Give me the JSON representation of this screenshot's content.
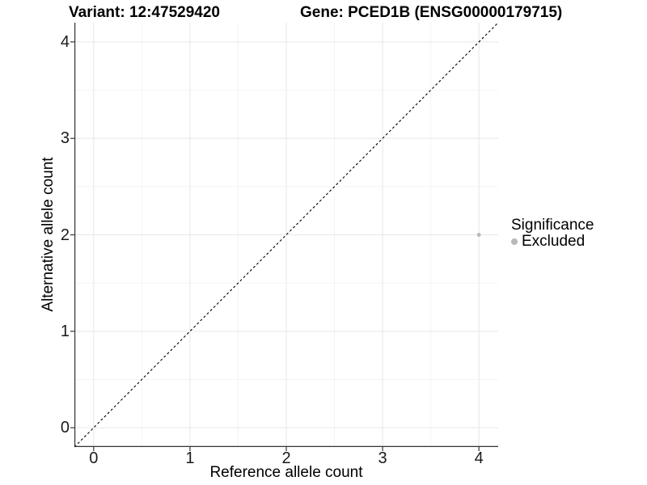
{
  "titles": {
    "variant": "Variant: 12:47529420",
    "gene": "Gene: PCED1B (ENSG00000179715)"
  },
  "legend": {
    "title": "Significance",
    "items": [
      {
        "label": "Excluded",
        "color": "#b8b8b8"
      }
    ]
  },
  "colors": {
    "major_grid": "#e7e7e7",
    "minor_grid": "#f4f4f4",
    "axis_line": "#333333",
    "tick_mark": "#333333",
    "reference_line": "#000000"
  },
  "chart_data": {
    "type": "scatter",
    "title": "Variant: 12:47529420   Gene: PCED1B (ENSG00000179715)",
    "xlabel": "Reference allele count",
    "ylabel": "Alternative allele count",
    "xlim": [
      -0.2,
      4.2
    ],
    "ylim": [
      -0.2,
      4.2
    ],
    "x_ticks": [
      0,
      1,
      2,
      3,
      4
    ],
    "y_ticks": [
      0,
      1,
      2,
      3,
      4
    ],
    "x_minor_ticks": [
      0.5,
      1.5,
      2.5,
      3.5
    ],
    "y_minor_ticks": [
      0.5,
      1.5,
      2.5,
      3.5
    ],
    "grid": true,
    "legend_position": "right",
    "legend_title": "Significance",
    "series": [
      {
        "name": "Excluded",
        "color": "#b8b8b8",
        "points": [
          {
            "x": 4,
            "y": 2
          }
        ]
      }
    ],
    "reference_line": {
      "slope": 1,
      "intercept": 0,
      "style": "dashed",
      "color": "#000000"
    }
  }
}
